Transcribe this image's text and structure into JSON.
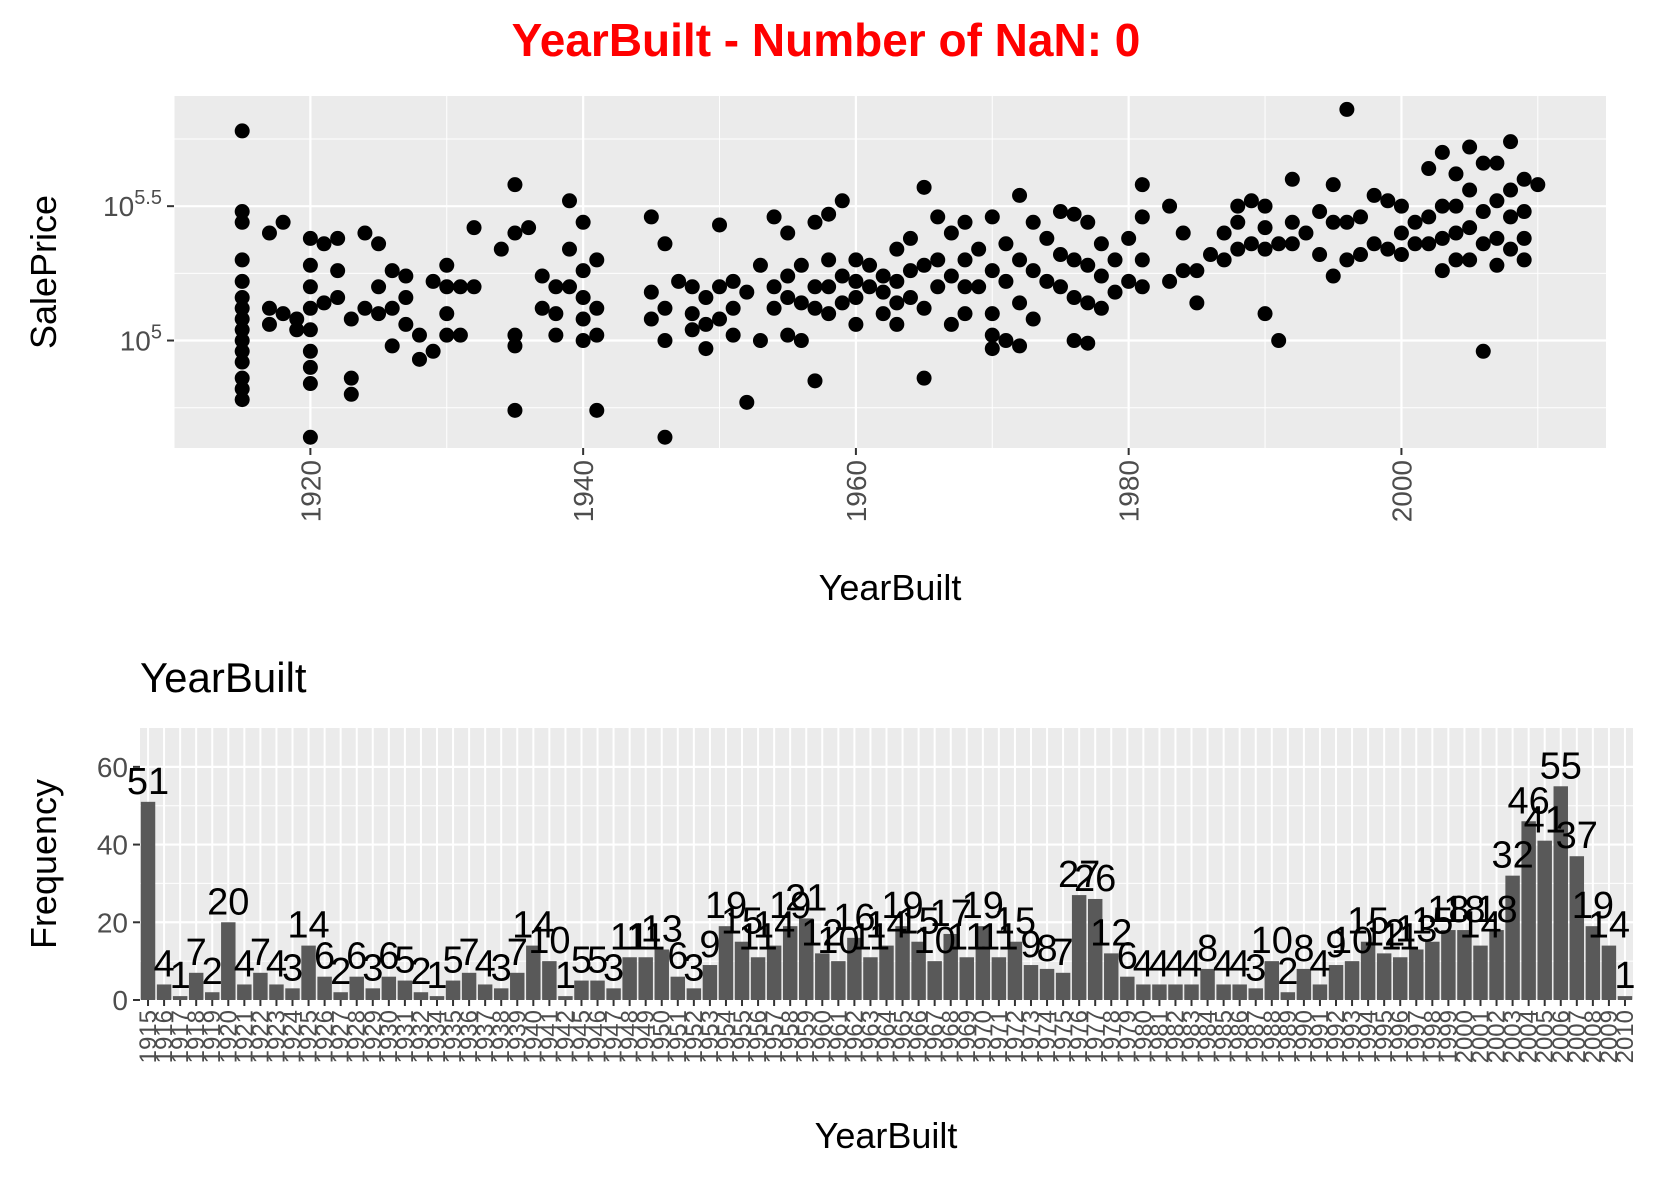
{
  "title": "YearBuilt - Number of NaN: 0",
  "colors": {
    "title": "#ff0000",
    "panel": "#ebebeb",
    "grid": "#ffffff",
    "points": "#000000",
    "bars": "#595959"
  },
  "chart_data": [
    {
      "type": "scatter",
      "xlabel": "YearBuilt",
      "ylabel": "SalePrice",
      "y_scale": "log10",
      "xlim": [
        1910,
        2015
      ],
      "ylim_log10": [
        4.6,
        5.91
      ],
      "x_ticks": [
        1920,
        1940,
        1960,
        1980,
        2000
      ],
      "y_ticks": [
        {
          "log10": 5,
          "base": "10",
          "exp": "5"
        },
        {
          "log10": 5.5,
          "base": "10",
          "exp": "5.5"
        }
      ],
      "grid": true,
      "points": [
        [
          1915,
          5.78
        ],
        [
          1915,
          5.48
        ],
        [
          1915,
          5.44
        ],
        [
          1915,
          5.3
        ],
        [
          1915,
          5.22
        ],
        [
          1915,
          5.16
        ],
        [
          1915,
          5.12
        ],
        [
          1915,
          5.08
        ],
        [
          1915,
          5.04
        ],
        [
          1915,
          5.0
        ],
        [
          1915,
          4.96
        ],
        [
          1915,
          4.92
        ],
        [
          1915,
          4.86
        ],
        [
          1915,
          4.82
        ],
        [
          1915,
          4.78
        ],
        [
          1917,
          5.4
        ],
        [
          1917,
          5.12
        ],
        [
          1917,
          5.06
        ],
        [
          1918,
          5.44
        ],
        [
          1918,
          5.1
        ],
        [
          1919,
          5.08
        ],
        [
          1919,
          5.04
        ],
        [
          1920,
          5.38
        ],
        [
          1920,
          5.28
        ],
        [
          1920,
          5.2
        ],
        [
          1920,
          5.12
        ],
        [
          1920,
          5.04
        ],
        [
          1920,
          4.96
        ],
        [
          1920,
          4.9
        ],
        [
          1920,
          4.84
        ],
        [
          1920,
          4.64
        ],
        [
          1921,
          5.36
        ],
        [
          1921,
          5.14
        ],
        [
          1922,
          5.38
        ],
        [
          1922,
          5.26
        ],
        [
          1922,
          5.16
        ],
        [
          1923,
          5.08
        ],
        [
          1923,
          4.86
        ],
        [
          1923,
          4.8
        ],
        [
          1924,
          5.4
        ],
        [
          1924,
          5.12
        ],
        [
          1925,
          5.36
        ],
        [
          1925,
          5.2
        ],
        [
          1925,
          5.1
        ],
        [
          1926,
          5.26
        ],
        [
          1926,
          5.12
        ],
        [
          1926,
          4.98
        ],
        [
          1927,
          5.24
        ],
        [
          1927,
          5.16
        ],
        [
          1927,
          5.06
        ],
        [
          1928,
          5.02
        ],
        [
          1928,
          4.93
        ],
        [
          1929,
          5.22
        ],
        [
          1929,
          4.96
        ],
        [
          1930,
          5.28
        ],
        [
          1930,
          5.2
        ],
        [
          1930,
          5.1
        ],
        [
          1930,
          5.02
        ],
        [
          1931,
          5.2
        ],
        [
          1931,
          5.02
        ],
        [
          1932,
          5.42
        ],
        [
          1932,
          5.2
        ],
        [
          1934,
          5.34
        ],
        [
          1935,
          5.58
        ],
        [
          1935,
          5.4
        ],
        [
          1935,
          5.02
        ],
        [
          1935,
          4.98
        ],
        [
          1935,
          4.74
        ],
        [
          1936,
          5.42
        ],
        [
          1937,
          5.24
        ],
        [
          1937,
          5.12
        ],
        [
          1938,
          5.2
        ],
        [
          1938,
          5.1
        ],
        [
          1938,
          5.02
        ],
        [
          1939,
          5.52
        ],
        [
          1939,
          5.34
        ],
        [
          1939,
          5.2
        ],
        [
          1940,
          5.44
        ],
        [
          1940,
          5.26
        ],
        [
          1940,
          5.16
        ],
        [
          1940,
          5.08
        ],
        [
          1940,
          5.0
        ],
        [
          1941,
          5.3
        ],
        [
          1941,
          5.12
        ],
        [
          1941,
          5.02
        ],
        [
          1941,
          4.74
        ],
        [
          1945,
          5.46
        ],
        [
          1945,
          5.18
        ],
        [
          1945,
          5.08
        ],
        [
          1946,
          5.36
        ],
        [
          1946,
          5.12
        ],
        [
          1946,
          5.0
        ],
        [
          1946,
          4.64
        ],
        [
          1947,
          5.22
        ],
        [
          1948,
          5.2
        ],
        [
          1948,
          5.1
        ],
        [
          1948,
          5.04
        ],
        [
          1949,
          5.16
        ],
        [
          1949,
          5.06
        ],
        [
          1949,
          4.97
        ],
        [
          1950,
          5.43
        ],
        [
          1950,
          5.2
        ],
        [
          1950,
          5.08
        ],
        [
          1951,
          5.22
        ],
        [
          1951,
          5.12
        ],
        [
          1951,
          5.02
        ],
        [
          1952,
          5.18
        ],
        [
          1952,
          4.77
        ],
        [
          1953,
          5.28
        ],
        [
          1953,
          5.0
        ],
        [
          1954,
          5.46
        ],
        [
          1954,
          5.2
        ],
        [
          1954,
          5.12
        ],
        [
          1955,
          5.4
        ],
        [
          1955,
          5.24
        ],
        [
          1955,
          5.16
        ],
        [
          1955,
          5.02
        ],
        [
          1956,
          5.28
        ],
        [
          1956,
          5.14
        ],
        [
          1956,
          5.0
        ],
        [
          1957,
          5.44
        ],
        [
          1957,
          5.2
        ],
        [
          1957,
          5.12
        ],
        [
          1957,
          4.85
        ],
        [
          1958,
          5.47
        ],
        [
          1958,
          5.3
        ],
        [
          1958,
          5.2
        ],
        [
          1958,
          5.1
        ],
        [
          1959,
          5.52
        ],
        [
          1959,
          5.24
        ],
        [
          1959,
          5.14
        ],
        [
          1960,
          5.3
        ],
        [
          1960,
          5.22
        ],
        [
          1960,
          5.16
        ],
        [
          1960,
          5.06
        ],
        [
          1961,
          5.28
        ],
        [
          1961,
          5.2
        ],
        [
          1962,
          5.24
        ],
        [
          1962,
          5.18
        ],
        [
          1962,
          5.1
        ],
        [
          1963,
          5.34
        ],
        [
          1963,
          5.22
        ],
        [
          1963,
          5.14
        ],
        [
          1963,
          5.06
        ],
        [
          1964,
          5.38
        ],
        [
          1964,
          5.26
        ],
        [
          1964,
          5.16
        ],
        [
          1965,
          5.57
        ],
        [
          1965,
          5.28
        ],
        [
          1965,
          5.12
        ],
        [
          1965,
          4.86
        ],
        [
          1966,
          5.46
        ],
        [
          1966,
          5.3
        ],
        [
          1966,
          5.2
        ],
        [
          1967,
          5.4
        ],
        [
          1967,
          5.24
        ],
        [
          1967,
          5.06
        ],
        [
          1968,
          5.44
        ],
        [
          1968,
          5.3
        ],
        [
          1968,
          5.2
        ],
        [
          1968,
          5.1
        ],
        [
          1969,
          5.34
        ],
        [
          1969,
          5.2
        ],
        [
          1970,
          5.46
        ],
        [
          1970,
          5.26
        ],
        [
          1970,
          5.1
        ],
        [
          1970,
          5.02
        ],
        [
          1970,
          4.97
        ],
        [
          1971,
          5.36
        ],
        [
          1971,
          5.22
        ],
        [
          1971,
          5.0
        ],
        [
          1972,
          5.54
        ],
        [
          1972,
          5.3
        ],
        [
          1972,
          5.14
        ],
        [
          1972,
          4.98
        ],
        [
          1973,
          5.44
        ],
        [
          1973,
          5.26
        ],
        [
          1973,
          5.08
        ],
        [
          1974,
          5.38
        ],
        [
          1974,
          5.22
        ],
        [
          1975,
          5.48
        ],
        [
          1975,
          5.32
        ],
        [
          1975,
          5.2
        ],
        [
          1976,
          5.47
        ],
        [
          1976,
          5.3
        ],
        [
          1976,
          5.16
        ],
        [
          1976,
          5.0
        ],
        [
          1977,
          5.44
        ],
        [
          1977,
          5.28
        ],
        [
          1977,
          5.14
        ],
        [
          1977,
          4.99
        ],
        [
          1978,
          5.36
        ],
        [
          1978,
          5.24
        ],
        [
          1978,
          5.12
        ],
        [
          1979,
          5.3
        ],
        [
          1979,
          5.18
        ],
        [
          1980,
          5.38
        ],
        [
          1980,
          5.22
        ],
        [
          1981,
          5.58
        ],
        [
          1981,
          5.46
        ],
        [
          1981,
          5.3
        ],
        [
          1981,
          5.2
        ],
        [
          1983,
          5.5
        ],
        [
          1983,
          5.22
        ],
        [
          1984,
          5.4
        ],
        [
          1984,
          5.26
        ],
        [
          1985,
          5.26
        ],
        [
          1985,
          5.14
        ],
        [
          1986,
          5.32
        ],
        [
          1987,
          5.4
        ],
        [
          1987,
          5.3
        ],
        [
          1988,
          5.5
        ],
        [
          1988,
          5.44
        ],
        [
          1988,
          5.34
        ],
        [
          1989,
          5.52
        ],
        [
          1989,
          5.36
        ],
        [
          1990,
          5.5
        ],
        [
          1990,
          5.42
        ],
        [
          1990,
          5.34
        ],
        [
          1990,
          5.1
        ],
        [
          1991,
          5.36
        ],
        [
          1991,
          5.0
        ],
        [
          1992,
          5.6
        ],
        [
          1992,
          5.44
        ],
        [
          1992,
          5.36
        ],
        [
          1993,
          5.4
        ],
        [
          1994,
          5.48
        ],
        [
          1994,
          5.32
        ],
        [
          1995,
          5.58
        ],
        [
          1995,
          5.44
        ],
        [
          1995,
          5.24
        ],
        [
          1996,
          5.86
        ],
        [
          1996,
          5.44
        ],
        [
          1996,
          5.3
        ],
        [
          1997,
          5.46
        ],
        [
          1997,
          5.32
        ],
        [
          1998,
          5.54
        ],
        [
          1998,
          5.36
        ],
        [
          1999,
          5.52
        ],
        [
          1999,
          5.34
        ],
        [
          2000,
          5.5
        ],
        [
          2000,
          5.4
        ],
        [
          2000,
          5.32
        ],
        [
          2001,
          5.44
        ],
        [
          2001,
          5.36
        ],
        [
          2002,
          5.64
        ],
        [
          2002,
          5.46
        ],
        [
          2002,
          5.36
        ],
        [
          2003,
          5.7
        ],
        [
          2003,
          5.5
        ],
        [
          2003,
          5.38
        ],
        [
          2003,
          5.26
        ],
        [
          2004,
          5.62
        ],
        [
          2004,
          5.5
        ],
        [
          2004,
          5.4
        ],
        [
          2004,
          5.3
        ],
        [
          2005,
          5.72
        ],
        [
          2005,
          5.56
        ],
        [
          2005,
          5.42
        ],
        [
          2005,
          5.3
        ],
        [
          2006,
          5.66
        ],
        [
          2006,
          5.48
        ],
        [
          2006,
          5.36
        ],
        [
          2006,
          4.96
        ],
        [
          2007,
          5.66
        ],
        [
          2007,
          5.52
        ],
        [
          2007,
          5.38
        ],
        [
          2007,
          5.28
        ],
        [
          2008,
          5.74
        ],
        [
          2008,
          5.56
        ],
        [
          2008,
          5.46
        ],
        [
          2008,
          5.34
        ],
        [
          2009,
          5.6
        ],
        [
          2009,
          5.48
        ],
        [
          2009,
          5.38
        ],
        [
          2009,
          5.3
        ],
        [
          2010,
          5.58
        ]
      ]
    },
    {
      "type": "bar",
      "title": "YearBuilt",
      "xlabel": "YearBuilt",
      "ylabel": "Frequency",
      "ylim": [
        0,
        70
      ],
      "y_ticks": [
        0,
        20,
        40,
        60
      ],
      "grid": true,
      "categories": [
        "1915",
        "1916",
        "1917",
        "1918",
        "1919",
        "1920",
        "1921",
        "1922",
        "1923",
        "1924",
        "1925",
        "1926",
        "1927",
        "1928",
        "1929",
        "1930",
        "1931",
        "1932",
        "1934",
        "1935",
        "1936",
        "1937",
        "1938",
        "1939",
        "1940",
        "1941",
        "1942",
        "1945",
        "1946",
        "1947",
        "1948",
        "1949",
        "1950",
        "1951",
        "1952",
        "1953",
        "1954",
        "1955",
        "1956",
        "1957",
        "1958",
        "1959",
        "1960",
        "1961",
        "1962",
        "1963",
        "1964",
        "1965",
        "1966",
        "1967",
        "1968",
        "1969",
        "1970",
        "1971",
        "1972",
        "1973",
        "1974",
        "1975",
        "1976",
        "1977",
        "1978",
        "1979",
        "1980",
        "1981",
        "1982",
        "1983",
        "1984",
        "1985",
        "1986",
        "1987",
        "1988",
        "1989",
        "1990",
        "1991",
        "1992",
        "1993",
        "1994",
        "1995",
        "1996",
        "1997",
        "1998",
        "1999",
        "2000",
        "2001",
        "2002",
        "2003",
        "2004",
        "2005",
        "2006",
        "2007",
        "2008",
        "2009",
        "2010"
      ],
      "values": [
        51,
        4,
        1,
        7,
        2,
        20,
        4,
        7,
        4,
        3,
        14,
        6,
        2,
        6,
        3,
        6,
        5,
        2,
        1,
        5,
        7,
        4,
        3,
        7,
        14,
        10,
        1,
        5,
        5,
        3,
        11,
        11,
        13,
        6,
        3,
        9,
        19,
        15,
        11,
        14,
        19,
        21,
        12,
        10,
        16,
        11,
        14,
        19,
        15,
        10,
        17,
        11,
        19,
        11,
        15,
        9,
        8,
        7,
        27,
        26,
        12,
        6,
        4,
        4,
        4,
        4,
        8,
        4,
        4,
        3,
        10,
        2,
        8,
        4,
        9,
        10,
        15,
        12,
        11,
        13,
        15,
        18,
        18,
        14,
        18,
        32,
        46,
        41,
        55,
        37,
        19,
        14,
        1
      ]
    }
  ]
}
